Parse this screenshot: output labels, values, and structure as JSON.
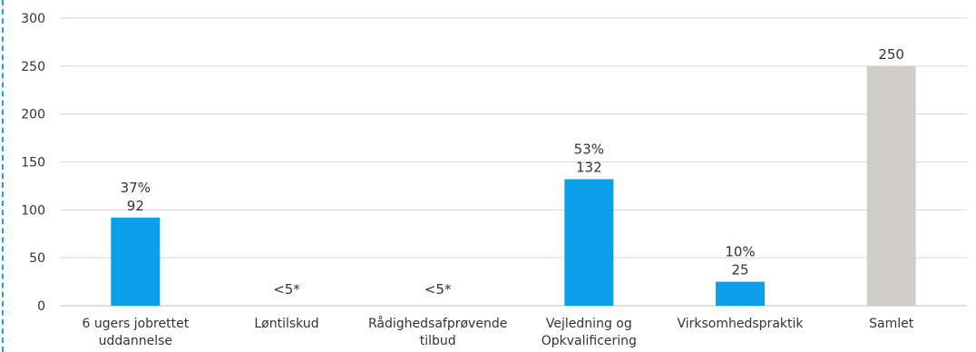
{
  "colors": {
    "bar": "#0b9fe8",
    "total_bar": "#cfcfc8",
    "grid": "#d9d9d9",
    "axis": "#bfbfbf",
    "frame": "#1ca0e0"
  },
  "chart_data": {
    "type": "bar",
    "title": "",
    "xlabel": "",
    "ylabel": "",
    "ylim": [
      0,
      300
    ],
    "yticks": [
      0,
      50,
      100,
      150,
      200,
      250,
      300
    ],
    "grid": true,
    "categories": [
      [
        "6 ugers jobrettet",
        "uddannelse"
      ],
      [
        "Løntilskud"
      ],
      [
        "Rådighedsafprøvende",
        "tilbud"
      ],
      [
        "Vejledning og",
        "Opkvalificering"
      ],
      [
        "Virksomhedspraktik"
      ],
      [
        "Samlet"
      ]
    ],
    "values": [
      92,
      null,
      null,
      132,
      25,
      250
    ],
    "data_labels": [
      [
        "37%",
        "92"
      ],
      [
        "<5*"
      ],
      [
        "<5*"
      ],
      [
        "53%",
        "132"
      ],
      [
        "10%",
        "25"
      ],
      [
        "250"
      ]
    ],
    "highlight_total_index": 5
  }
}
